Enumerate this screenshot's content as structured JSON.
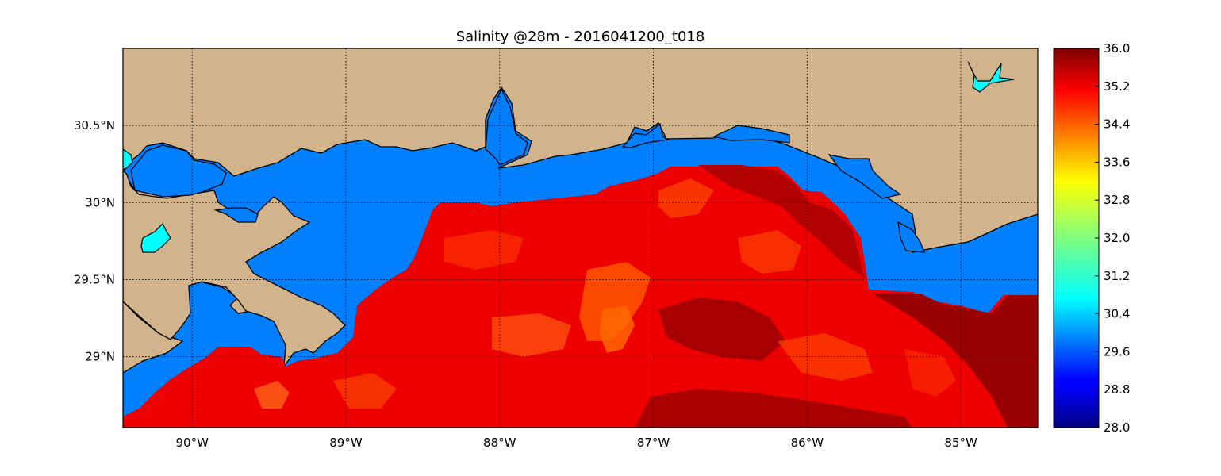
{
  "title": "Salinity @28m - 2016041200_t018",
  "map": {
    "lon_range": [
      -90.45,
      -84.5
    ],
    "lat_range": [
      28.54,
      31.0
    ],
    "lon_ticks": [
      {
        "value": -90,
        "label": "90°W"
      },
      {
        "value": -89,
        "label": "89°W"
      },
      {
        "value": -88,
        "label": "88°W"
      },
      {
        "value": -87,
        "label": "87°W"
      },
      {
        "value": -86,
        "label": "86°W"
      },
      {
        "value": -85,
        "label": "85°W"
      }
    ],
    "lat_ticks": [
      {
        "value": 30.5,
        "label": "30.5°N"
      },
      {
        "value": 30.0,
        "label": "30°N"
      },
      {
        "value": 29.5,
        "label": "29.5°N"
      },
      {
        "value": 29.0,
        "label": "29°N"
      }
    ],
    "colors": {
      "land": "#d2b48c",
      "ocean_fill_low_salinity": "#0080ff",
      "lakes": "#00ffff",
      "coastline": "#000000"
    },
    "grid": "dotted"
  },
  "colorbar": {
    "colormap": "jet",
    "min": 28.0,
    "max": 36.0,
    "ticks": [
      "28.0",
      "28.8",
      "29.6",
      "30.4",
      "31.2",
      "32.0",
      "32.8",
      "33.6",
      "34.4",
      "35.2",
      "36.0"
    ]
  }
}
